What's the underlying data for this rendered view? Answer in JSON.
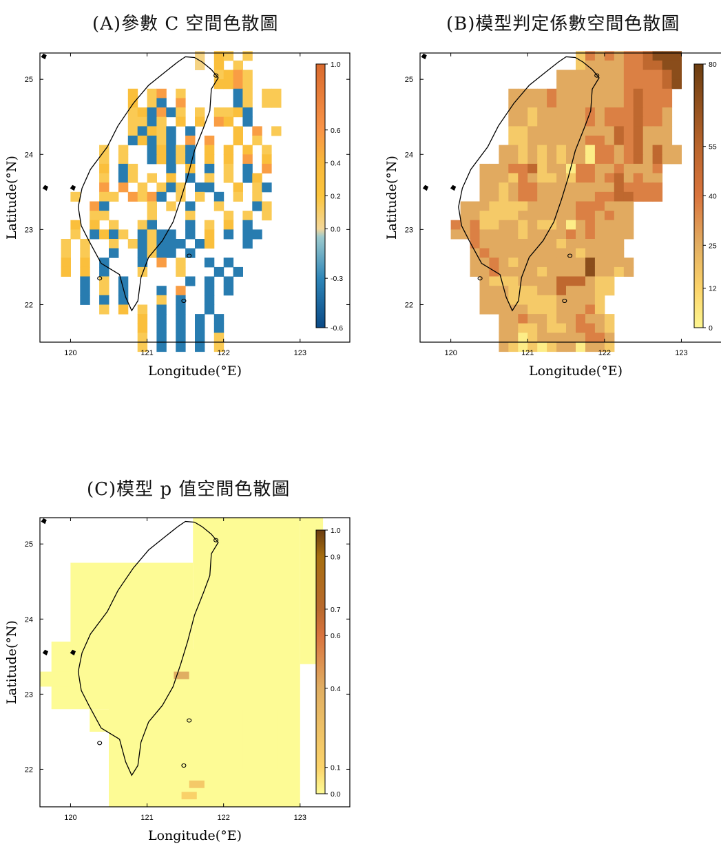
{
  "chart_data": [
    {
      "type": "heatmap",
      "title": "(A)參數 C 空間色散圖",
      "xlabel": "Longitude(°E)",
      "ylabel": "Latitude(°N)",
      "xlim": [
        119.6,
        123.65
      ],
      "ylim": [
        21.5,
        25.35
      ],
      "x_ticks": [
        "120",
        "121",
        "122",
        "123"
      ],
      "y_ticks": [
        "22",
        "23",
        "24",
        "25"
      ],
      "colorbar": {
        "ticks": [
          "1.0",
          "0.6",
          "0.4",
          "0.2",
          "0.0",
          "-0.3",
          "-0.6"
        ],
        "tick_values": [
          1.0,
          0.6,
          0.4,
          0.2,
          0.0,
          -0.3,
          -0.6
        ],
        "range": [
          -0.6,
          1.0
        ],
        "stops": [
          {
            "v": -0.6,
            "c": "#0b4a86"
          },
          {
            "v": -0.3,
            "c": "#2e86b8"
          },
          {
            "v": -0.05,
            "c": "#9ccacd"
          },
          {
            "v": 0.0,
            "c": "#f3d79a"
          },
          {
            "v": 0.2,
            "c": "#fcc53d"
          },
          {
            "v": 0.4,
            "c": "#f8b83a"
          },
          {
            "v": 0.6,
            "c": "#f99447"
          },
          {
            "v": 1.0,
            "c": "#d96a2e"
          }
        ]
      },
      "grid": {
        "dx": 0.125,
        "dy": 0.125,
        "x0": 119.625,
        "y0": 25.25,
        "rows": [
          "................0.21.1...",
          "................0.2.1....",
          "..................1231...",
          "..................2231...",
          ".........2.13.1.....-1.11",
          ".........2.1-.3.....-1.11",
          ".........12-3-1.1.112-...",
          ".........11-1.2.2.32.-...",
          ".........1-21-.-....2.3.1",
          ".........-2-1-.3.3..2.1..",
          "......1.1..-2-1-.2.2.2.1.",
          "......1.1..-2-1-.2.2.3.2.",
          "......2.-1...-.2.-.1.-.3.",
          "......1.-1.1.2.-.1.1.-2..",
          "......3.3.1.1-1.--..2.1-.",
          "...1..11.313-.1.1.-.1.1..",
          ".....3-....1.1.-..1...-1.",
          ".....11....1...1...1.1.1.",
          "...2.2.1..1-...-.1.2.-...",
          "...1.-2-1.-1--.-.2.-.--..",
          "..1.1..1.1-1---.-2...-..",
          "..1.1..-..-1--.-.......",
          "..2.2.-...-.3.1..-.-...",
          "..2.2.-...1...1...-.-..",
          "....-.1.-......-.-.-.",
          "....-.1.-...-.3..-.-.",
          "....-.-.-...1.-..-...",
          "......1.2.1.-.-..-...",
          "..........2.-.-.-.-.",
          "..........2.-.-.-.-.",
          "..........1.-.-.-.1.",
          "..........1.-.-.-.1."
        ]
      }
    },
    {
      "type": "heatmap",
      "title": "(B)模型判定係數空間色散圖",
      "xlabel": "Longitude(°E)",
      "ylabel": "Latitude(°N)",
      "xlim": [
        119.6,
        123.65
      ],
      "ylim": [
        21.5,
        25.35
      ],
      "x_ticks": [
        "120",
        "121",
        "122",
        "123"
      ],
      "y_ticks": [
        "22",
        "23",
        "24",
        "25"
      ],
      "colorbar": {
        "ticks": [
          "80",
          "55",
          "40",
          "25",
          "12",
          "0"
        ],
        "tick_values": [
          80,
          55,
          40,
          25,
          12,
          0
        ],
        "range": [
          0,
          80
        ],
        "stops": [
          {
            "v": 0,
            "c": "#fdf691"
          },
          {
            "v": 12,
            "c": "#fbd36a"
          },
          {
            "v": 25,
            "c": "#e2ae62"
          },
          {
            "v": 40,
            "c": "#d9743d"
          },
          {
            "v": 55,
            "c": "#b9652c"
          },
          {
            "v": 80,
            "c": "#6b3d10"
          }
        ]
      },
      "grid": {
        "dx": 0.125,
        "dy": 0.125,
        "x0": 119.625,
        "y0": 25.25,
        "rows": [
          "................24343445666",
          "................23333445566",
          "..............3333333444456",
          "..............3333333444456",
          ".........33334333333345444",
          ".........33334333333345444",
          ".........33233333434445443",
          ".........33233333434445443",
          ".........22333333333545333",
          ".........22333333443545333",
          "........3323232331443453533",
          "........3323232331443453533",
          "......3334452331443343334",
          "......3332432232443453433",
          "......3323443333333354444",
          "......3323443333334455444",
          "....333222233333444333",
          "....332222333333443433",
          "...4342233232231343333",
          "...3343333233334343333",
          ".....4333333332333333",
          ".....3433333333323333",
          ".....33432333333363333",
          ".....33433332333363323",
          "......32223333555322",
          "......33322233533322",
          "......3332222233332",
          "......3333322233342",
          "........334332334332",
          "........332232234432",
          "........331233333443",
          "........321212331332"
        ]
      }
    },
    {
      "type": "heatmap",
      "title": "(C)模型 p 值空間色散圖",
      "xlabel": "Longitude(°E)",
      "ylabel": "Latitude(°N)",
      "xlim": [
        119.6,
        123.65
      ],
      "ylim": [
        21.5,
        25.35
      ],
      "x_ticks": [
        "120",
        "121",
        "122",
        "123"
      ],
      "y_ticks": [
        "22",
        "23",
        "24",
        "25"
      ],
      "colorbar": {
        "ticks": [
          "1.0",
          "0.9",
          "0.7",
          "0.6",
          "0.4",
          "0.1",
          "0.0"
        ],
        "tick_values": [
          1.0,
          0.9,
          0.7,
          0.6,
          0.4,
          0.1,
          0.0
        ],
        "range": [
          0,
          1
        ],
        "stops": [
          {
            "v": 0.0,
            "c": "#fdfb95"
          },
          {
            "v": 0.1,
            "c": "#fbd36a"
          },
          {
            "v": 0.4,
            "c": "#e0ae62"
          },
          {
            "v": 0.6,
            "c": "#d9733e"
          },
          {
            "v": 0.7,
            "c": "#b96a2e"
          },
          {
            "v": 0.9,
            "c": "#a66e10"
          },
          {
            "v": 1.0,
            "c": "#6b3d10"
          }
        ]
      }
    }
  ]
}
